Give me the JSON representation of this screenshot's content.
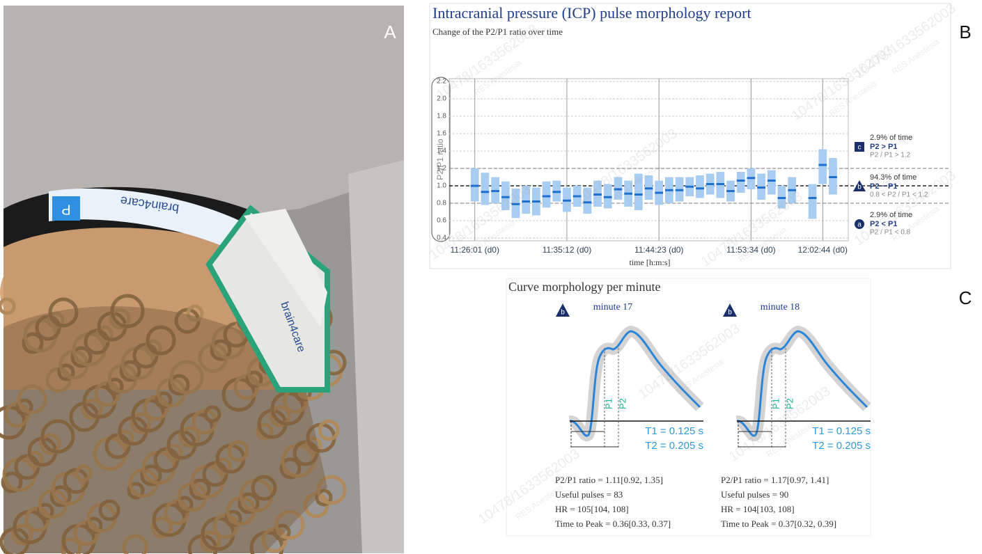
{
  "panel_labels": [
    "A",
    "B",
    "C"
  ],
  "watermark": [
    "10478/1633562003",
    "RES Anestesia"
  ],
  "photo": {
    "brand": "brain4care",
    "band": "banda",
    "sensor": "P"
  },
  "chart_data": {
    "type": "range",
    "title": "Intracranial pressure (ICP) pulse morphology report",
    "subtitle": "Change of the P2/P1 ratio over time",
    "ylabel": "P2/P1 ratio",
    "xlabel": "time [h:m:s]",
    "categories": [
      null,
      null,
      "11:26:01 (d0)",
      null,
      null,
      null,
      null,
      null,
      null,
      null,
      null,
      "11:35:12 (d0)",
      null,
      null,
      null,
      null,
      null,
      null,
      null,
      null,
      "11:44:23 (d0)",
      null,
      null,
      null,
      null,
      null,
      null,
      null,
      null,
      "11:53:34 (d0)",
      null,
      null,
      null,
      null,
      null,
      null,
      "12:02:44 (d0)",
      null,
      null
    ],
    "median": [
      null,
      null,
      1.0,
      0.93,
      0.94,
      0.87,
      0.79,
      0.82,
      0.82,
      0.88,
      0.93,
      0.83,
      0.88,
      0.81,
      0.9,
      0.87,
      0.96,
      0.91,
      0.9,
      0.97,
      0.92,
      0.95,
      0.95,
      0.99,
      0.97,
      1.02,
      1.02,
      0.94,
      1.06,
      1.09,
      0.98,
      1.06,
      0.86,
      0.95,
      null,
      0.86,
      1.24,
      1.1,
      null
    ],
    "low": [
      null,
      null,
      0.82,
      0.78,
      0.8,
      0.72,
      0.63,
      0.68,
      0.66,
      0.75,
      0.82,
      0.7,
      0.76,
      0.68,
      0.76,
      0.74,
      0.84,
      0.76,
      0.72,
      0.84,
      0.78,
      0.8,
      0.82,
      0.88,
      0.86,
      0.9,
      0.86,
      0.82,
      0.92,
      0.96,
      0.84,
      0.9,
      0.74,
      0.8,
      null,
      0.62,
      1.02,
      0.9,
      null
    ],
    "high": [
      null,
      null,
      1.2,
      1.15,
      1.1,
      1.05,
      0.97,
      1.0,
      0.98,
      1.05,
      1.06,
      0.98,
      1.0,
      0.98,
      1.06,
      1.02,
      1.1,
      1.06,
      1.14,
      1.12,
      1.06,
      1.1,
      1.1,
      1.1,
      1.12,
      1.14,
      1.16,
      1.06,
      1.16,
      1.2,
      1.14,
      1.18,
      1.0,
      1.1,
      null,
      1.02,
      1.42,
      1.32,
      null
    ],
    "color": "#a9cdf0",
    "median_color": "#1f6fd1",
    "ylim": [
      0.4,
      2.2
    ],
    "yticks": [
      0.4,
      0.6,
      0.8,
      {
        "value": 1,
        "label": "1.0"
      },
      1.2,
      1.4,
      1.6,
      1.8,
      {
        "value": 2,
        "label": "2.0"
      },
      2.2
    ],
    "reference_lines": [
      0.8,
      1,
      1.2
    ],
    "grid": true,
    "annotations": [
      {
        "icon": "c",
        "share": "2.9% of time",
        "label": "P2 > P1",
        "condition": "P2 / P1 > 1.2"
      },
      {
        "icon": "b",
        "share": "94.3% of time",
        "label": "P2 ~ P1",
        "condition": "0.8 < P2 / P1 < 1.2"
      },
      {
        "icon": "a",
        "share": "2.9% of time",
        "label": "P2 < P1",
        "condition": "P2 / P1 < 0.8"
      }
    ]
  },
  "curves": {
    "title": "Curve morphology per minute",
    "panels": [
      {
        "icon": "b",
        "minute": "minute 17",
        "p1": "P1",
        "p2": "P2",
        "t1": "T1 = 0.125 s",
        "t2": "T2 = 0.205 s",
        "stats": [
          "P2/P1 ratio = 1.11[0.92, 1.35]",
          "Useful pulses = 83",
          "HR = 105[104, 108]",
          "Time to Peak = 0.36[0.33, 0.37]"
        ]
      },
      {
        "icon": "b",
        "minute": "minute 18",
        "p1": "P1",
        "p2": "P2",
        "t1": "T1 = 0.125 s",
        "t2": "T2 = 0.205 s",
        "stats": [
          "P2/P1 ratio = 1.17[0.97, 1.41]",
          "Useful pulses = 90",
          "HR = 104[103, 108]",
          "Time to Peak = 0.37[0.32, 0.39]"
        ]
      }
    ]
  }
}
